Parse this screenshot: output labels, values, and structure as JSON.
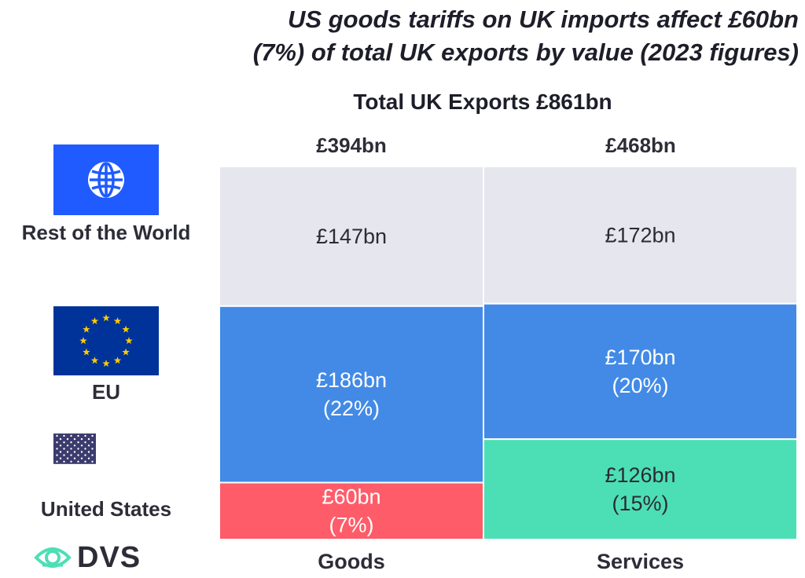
{
  "title_line1": "US goods tariffs on UK imports affect £60bn",
  "title_line2": "(7%) of total UK exports by value (2023 figures)",
  "logo_text": "DVS",
  "chart_data": {
    "type": "marimekko",
    "title": "US goods tariffs on UK imports affect £60bn (7%) of total UK exports by value (2023 figures)",
    "subtitle": "Total UK Exports £861bn",
    "total_value": 861,
    "categories": [
      "Goods",
      "Services"
    ],
    "category_totals": [
      394,
      468
    ],
    "category_total_labels": [
      "£394bn",
      "£468bn"
    ],
    "series": [
      {
        "name": "United States",
        "color": "#ff5c69",
        "values": [
          60,
          126
        ],
        "labels": [
          [
            "£60bn",
            "(7%)"
          ],
          [
            "£126bn",
            "(15%)"
          ]
        ],
        "text_colors": [
          "#ffffff",
          "#2b2b33"
        ],
        "alt_color": "#4cdfb5"
      },
      {
        "name": "EU",
        "color": "#428ae6",
        "values": [
          186,
          170
        ],
        "labels": [
          [
            "£186bn",
            "(22%)"
          ],
          [
            "£170bn",
            "(20%)"
          ]
        ],
        "text_colors": [
          "#ffffff",
          "#ffffff"
        ]
      },
      {
        "name": "Rest of the World",
        "color": "#e6e6ee",
        "values": [
          147,
          172
        ],
        "labels": [
          [
            "£147bn"
          ],
          [
            "£172bn"
          ]
        ],
        "text_colors": [
          "#2b2b33",
          "#2b2b33"
        ]
      }
    ],
    "legend": [
      {
        "name": "Rest of the World",
        "icon": "globe-icon"
      },
      {
        "name": "EU",
        "icon": "eu-flag-icon"
      },
      {
        "name": "United States",
        "icon": "us-flag-icon"
      }
    ]
  }
}
